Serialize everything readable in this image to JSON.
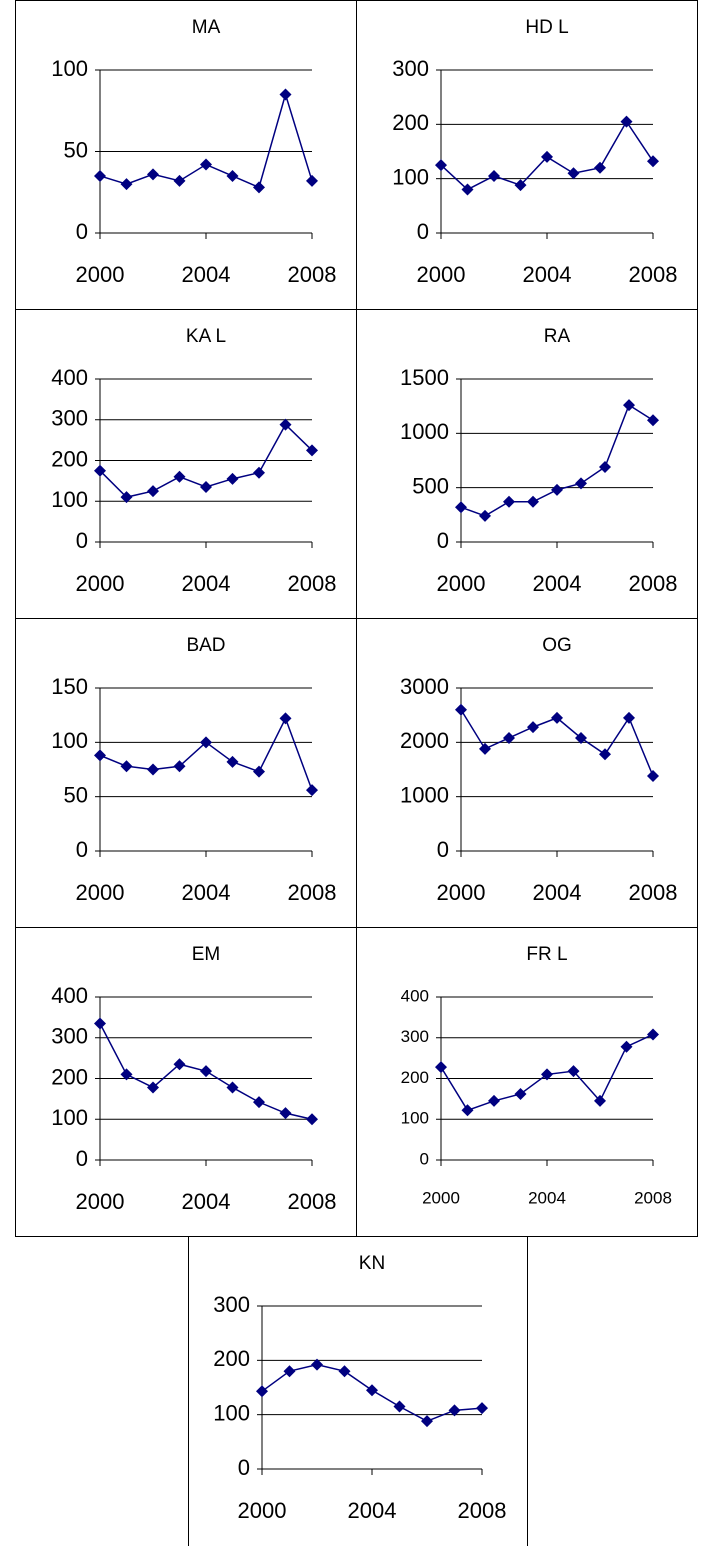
{
  "chart_data": [
    {
      "type": "line",
      "title": "MA",
      "x": [
        2000,
        2001,
        2002,
        2003,
        2004,
        2005,
        2006,
        2007,
        2008
      ],
      "values": [
        35,
        30,
        36,
        32,
        42,
        35,
        28,
        85,
        32
      ],
      "color": "#000080",
      "marker": "diamond",
      "xlim": [
        2000,
        2008
      ],
      "xticks": [
        2000,
        2004,
        2008
      ],
      "ylim": [
        0,
        100
      ],
      "yticks": [
        0,
        50,
        100
      ],
      "grid": true
    },
    {
      "type": "line",
      "title": "HD L",
      "x": [
        2000,
        2001,
        2002,
        2003,
        2004,
        2005,
        2006,
        2007,
        2008
      ],
      "values": [
        125,
        80,
        105,
        88,
        140,
        110,
        120,
        205,
        132
      ],
      "color": "#000080",
      "marker": "diamond",
      "xlim": [
        2000,
        2008
      ],
      "xticks": [
        2000,
        2004,
        2008
      ],
      "ylim": [
        0,
        300
      ],
      "yticks": [
        0,
        100,
        200,
        300
      ],
      "grid": true
    },
    {
      "type": "line",
      "title": "KA L",
      "x": [
        2000,
        2001,
        2002,
        2003,
        2004,
        2005,
        2006,
        2007,
        2008
      ],
      "values": [
        175,
        110,
        125,
        160,
        135,
        155,
        170,
        288,
        225
      ],
      "color": "#000080",
      "marker": "diamond",
      "xlim": [
        2000,
        2008
      ],
      "xticks": [
        2000,
        2004,
        2008
      ],
      "ylim": [
        0,
        400
      ],
      "yticks": [
        0,
        100,
        200,
        300,
        400
      ],
      "grid": true
    },
    {
      "type": "line",
      "title": "RA",
      "x": [
        2000,
        2001,
        2002,
        2003,
        2004,
        2005,
        2006,
        2007,
        2008
      ],
      "values": [
        320,
        240,
        370,
        370,
        480,
        540,
        690,
        1260,
        1120
      ],
      "color": "#000080",
      "marker": "diamond",
      "xlim": [
        2000,
        2008
      ],
      "xticks": [
        2000,
        2004,
        2008
      ],
      "ylim": [
        0,
        1500
      ],
      "yticks": [
        0,
        500,
        1000,
        1500
      ],
      "grid": true
    },
    {
      "type": "line",
      "title": "BAD",
      "x": [
        2000,
        2001,
        2002,
        2003,
        2004,
        2005,
        2006,
        2007,
        2008
      ],
      "values": [
        88,
        78,
        75,
        78,
        100,
        82,
        73,
        122,
        56
      ],
      "color": "#000080",
      "marker": "diamond",
      "xlim": [
        2000,
        2008
      ],
      "xticks": [
        2000,
        2004,
        2008
      ],
      "ylim": [
        0,
        150
      ],
      "yticks": [
        0,
        50,
        100,
        150
      ],
      "grid": true
    },
    {
      "type": "line",
      "title": "OG",
      "x": [
        2000,
        2001,
        2002,
        2003,
        2004,
        2005,
        2006,
        2007,
        2008
      ],
      "values": [
        2600,
        1880,
        2080,
        2280,
        2450,
        2080,
        1780,
        2450,
        1380
      ],
      "color": "#000080",
      "marker": "diamond",
      "xlim": [
        2000,
        2008
      ],
      "xticks": [
        2000,
        2004,
        2008
      ],
      "ylim": [
        0,
        3000
      ],
      "yticks": [
        0,
        1000,
        2000,
        3000
      ],
      "grid": true
    },
    {
      "type": "line",
      "title": "EM",
      "x": [
        2000,
        2001,
        2002,
        2003,
        2004,
        2005,
        2006,
        2007,
        2008
      ],
      "values": [
        335,
        210,
        178,
        235,
        218,
        178,
        142,
        115,
        100
      ],
      "color": "#000080",
      "marker": "diamond",
      "xlim": [
        2000,
        2008
      ],
      "xticks": [
        2000,
        2004,
        2008
      ],
      "ylim": [
        0,
        400
      ],
      "yticks": [
        0,
        100,
        200,
        300,
        400
      ],
      "grid": true
    },
    {
      "type": "line",
      "title": "FR L",
      "x": [
        2000,
        2001,
        2002,
        2003,
        2004,
        2005,
        2006,
        2007,
        2008
      ],
      "values": [
        228,
        122,
        145,
        162,
        210,
        218,
        145,
        278,
        308
      ],
      "color": "#000080",
      "marker": "diamond",
      "xlim": [
        2000,
        2008
      ],
      "xticks": [
        2000,
        2004,
        2008
      ],
      "ylim": [
        0,
        400
      ],
      "yticks": [
        0,
        100,
        200,
        300,
        400
      ],
      "grid": true
    },
    {
      "type": "line",
      "title": "KN",
      "x": [
        2000,
        2001,
        2002,
        2003,
        2004,
        2005,
        2006,
        2007,
        2008
      ],
      "values": [
        143,
        180,
        192,
        180,
        145,
        115,
        88,
        108,
        112
      ],
      "color": "#000080",
      "marker": "diamond",
      "xlim": [
        2000,
        2008
      ],
      "xticks": [
        2000,
        2004,
        2008
      ],
      "ylim": [
        0,
        300
      ],
      "yticks": [
        0,
        100,
        200,
        300
      ],
      "grid": true
    }
  ]
}
